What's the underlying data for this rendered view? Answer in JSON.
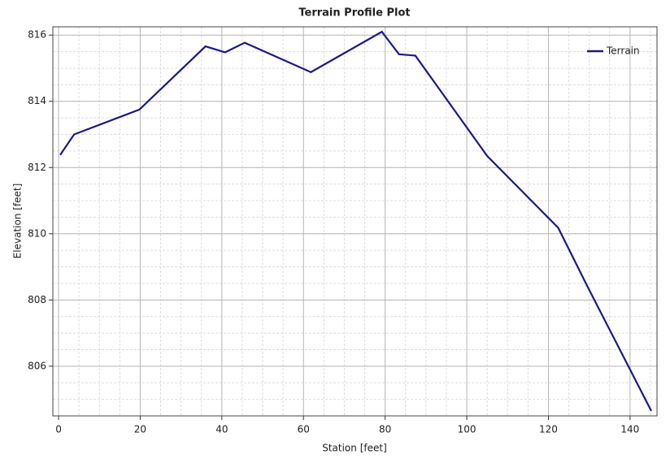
{
  "chart_data": {
    "type": "line",
    "title": "Terrain Profile Plot",
    "x_label": "Station [feet]",
    "y_label": "Elevation [feet]",
    "x": [
      0.4,
      3.8,
      19.8,
      36,
      40.8,
      45.6,
      61.8,
      79.2,
      83.4,
      87.4,
      105,
      122.4,
      129.6,
      145.2
    ],
    "series": [
      {
        "name": "Terrain",
        "color": "#1a1a8c",
        "values": [
          812.38,
          813.0,
          813.75,
          815.66,
          815.48,
          815.77,
          814.88,
          816.1,
          815.42,
          815.38,
          812.35,
          810.18,
          808.4,
          804.65
        ]
      }
    ],
    "xlim": [
      -1.4,
      146.6
    ],
    "xticks": [
      0,
      20,
      40,
      60,
      80,
      100,
      120,
      140
    ],
    "ylim": [
      804.5,
      816.25
    ],
    "yticks": [
      806,
      808,
      810,
      812,
      814,
      816
    ],
    "grid": true,
    "legend": "top-right"
  }
}
